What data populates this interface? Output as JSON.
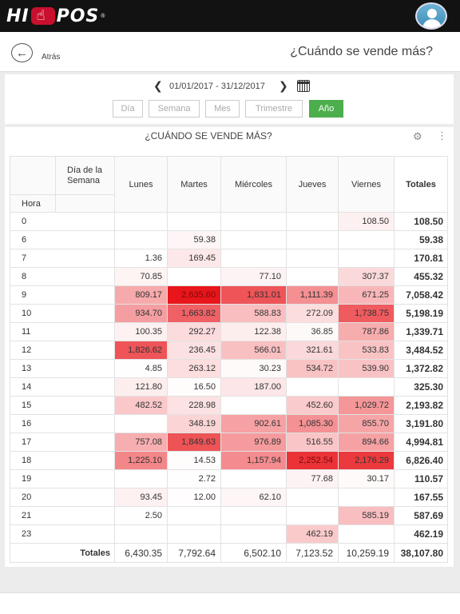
{
  "app": {
    "logo_left": "HI",
    "logo_right": "POS",
    "logo_mark": "®"
  },
  "header": {
    "back_label": "Atrás",
    "title": "¿Cuándo se vende más?"
  },
  "filters": {
    "date_range": "01/01/2017 - 31/12/2017",
    "periods": [
      "Día",
      "Semana",
      "Mes",
      "Trimestre",
      "Año"
    ],
    "active_period": "Año"
  },
  "card": {
    "title": "¿CUÁNDO SE VENDE MÁS?"
  },
  "table": {
    "corner_label": "Día de la Semana",
    "hour_label": "Hora",
    "days": [
      "Lunes",
      "Martes",
      "Miércoles",
      "Jueves",
      "Viernes"
    ],
    "totals_label": "Totales",
    "rows": [
      {
        "hora": "0",
        "values": [
          null,
          null,
          null,
          null,
          108.5
        ],
        "total": "108.50"
      },
      {
        "hora": "6",
        "values": [
          null,
          59.38,
          null,
          null,
          null
        ],
        "total": "59.38"
      },
      {
        "hora": "7",
        "values": [
          1.36,
          169.45,
          null,
          null,
          null
        ],
        "total": "170.81"
      },
      {
        "hora": "8",
        "values": [
          70.85,
          null,
          77.1,
          null,
          307.37
        ],
        "total": "455.32"
      },
      {
        "hora": "9",
        "values": [
          809.17,
          2635.6,
          1831.01,
          1111.39,
          671.25
        ],
        "total": "7,058.42"
      },
      {
        "hora": "10",
        "values": [
          934.7,
          1663.82,
          588.83,
          272.09,
          1738.75
        ],
        "total": "5,198.19"
      },
      {
        "hora": "11",
        "values": [
          100.35,
          292.27,
          122.38,
          36.85,
          787.86
        ],
        "total": "1,339.71"
      },
      {
        "hora": "12",
        "values": [
          1826.62,
          236.45,
          566.01,
          321.61,
          533.83
        ],
        "total": "3,484.52"
      },
      {
        "hora": "13",
        "values": [
          4.85,
          263.12,
          30.23,
          534.72,
          539.9
        ],
        "total": "1,372.82"
      },
      {
        "hora": "14",
        "values": [
          121.8,
          16.5,
          187.0,
          null,
          null
        ],
        "total": "325.30"
      },
      {
        "hora": "15",
        "values": [
          482.52,
          228.98,
          null,
          452.6,
          1029.72
        ],
        "total": "2,193.82"
      },
      {
        "hora": "16",
        "values": [
          null,
          348.19,
          902.61,
          1085.3,
          855.7
        ],
        "total": "3,191.80"
      },
      {
        "hora": "17",
        "values": [
          757.08,
          1849.63,
          976.89,
          516.55,
          894.66
        ],
        "total": "4,994.81"
      },
      {
        "hora": "18",
        "values": [
          1225.1,
          14.53,
          1157.94,
          2252.54,
          2176.29
        ],
        "total": "6,826.40"
      },
      {
        "hora": "19",
        "values": [
          null,
          2.72,
          null,
          77.68,
          30.17
        ],
        "total": "110.57"
      },
      {
        "hora": "20",
        "values": [
          93.45,
          12.0,
          62.1,
          null,
          null
        ],
        "total": "167.55"
      },
      {
        "hora": "21",
        "values": [
          2.5,
          null,
          null,
          null,
          585.19
        ],
        "total": "587.69"
      },
      {
        "hora": "23",
        "values": [
          null,
          null,
          null,
          462.19,
          null
        ],
        "total": "462.19"
      }
    ],
    "footer": {
      "label": "Totales",
      "values": [
        "6,430.35",
        "7,792.64",
        "6,502.10",
        "7,123.52",
        "10,259.19"
      ],
      "grand_total": "38,107.80"
    }
  },
  "colors": {
    "heat_base": "#ffffff",
    "heat_max": "#e8161b",
    "active_button": "#4cae4c",
    "topbar": "#121212"
  }
}
